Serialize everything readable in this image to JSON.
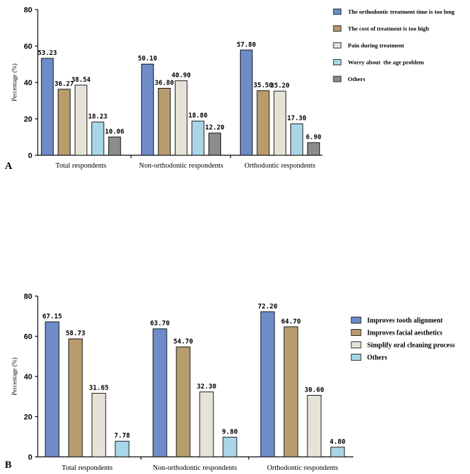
{
  "chart_data": [
    {
      "type": "bar",
      "panel": "A",
      "ylabel": "Percentage (%)",
      "xlabel": "",
      "ylim": [
        0,
        80
      ],
      "yticks": [
        0,
        20,
        40,
        60,
        80
      ],
      "categories": [
        "Total respondents",
        "Non-orthodontic respondents",
        "Orthodontic respondents"
      ],
      "series": [
        {
          "name": "The orthodontic treatment time is too long",
          "color": "#6f8cc8",
          "values": [
            53.23,
            50.1,
            57.8
          ],
          "labels": [
            "53.23",
            "50.10",
            "57.80"
          ]
        },
        {
          "name": "The cost of treatment is too high",
          "color": "#b89c6e",
          "values": [
            36.27,
            36.8,
            35.5
          ],
          "labels": [
            "36.27",
            "36.80",
            "35.50"
          ]
        },
        {
          "name": "Pain during treatment",
          "color": "#e6e2d8",
          "values": [
            38.54,
            40.9,
            35.2
          ],
          "labels": [
            "38.54",
            "40.90",
            "35.20"
          ]
        },
        {
          "name": "Worry about  the age problem",
          "color": "#a9d6e6",
          "values": [
            18.23,
            18.8,
            17.3
          ],
          "labels": [
            "18.23",
            "18.80",
            "17.30"
          ]
        },
        {
          "name": "Others",
          "color": "#8c8c8c",
          "values": [
            10.06,
            12.2,
            6.9
          ],
          "labels": [
            "10.06",
            "12.20",
            "6.90"
          ]
        }
      ],
      "legend_position": "right",
      "grid": false
    },
    {
      "type": "bar",
      "panel": "B",
      "ylabel": "Percentage (%)",
      "xlabel": "",
      "ylim": [
        0,
        80
      ],
      "yticks": [
        0,
        20,
        40,
        60,
        80
      ],
      "categories": [
        "Total respondents",
        "Non-orthodontic respondents",
        "Orthodontic respondents"
      ],
      "series": [
        {
          "name": "Improves tooth alignment",
          "color": "#6f8cc8",
          "values": [
            67.15,
            63.7,
            72.2
          ],
          "labels": [
            "67.15",
            "63.70",
            "72.20"
          ]
        },
        {
          "name": "Improves facial aesthetics",
          "color": "#b89c6e",
          "values": [
            58.73,
            54.7,
            64.7
          ],
          "labels": [
            "58.73",
            "54.70",
            "64.70"
          ]
        },
        {
          "name": "Simplify oral cleaning process",
          "color": "#e6e2d8",
          "values": [
            31.65,
            32.3,
            30.6
          ],
          "labels": [
            "31.65",
            "32.30",
            "30.60"
          ]
        },
        {
          "name": "Others",
          "color": "#a9d6e6",
          "values": [
            7.78,
            9.8,
            4.8
          ],
          "labels": [
            "7.78",
            "9.80",
            "4.80"
          ]
        }
      ],
      "legend_position": "right",
      "grid": false
    }
  ]
}
